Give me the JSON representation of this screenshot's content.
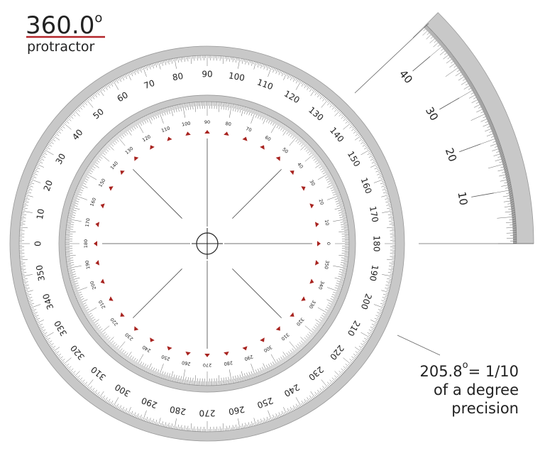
{
  "header": {
    "value": "360.0",
    "degree_sign": "o",
    "subtitle": "protractor"
  },
  "outer_scale": {
    "labels": [
      0,
      10,
      20,
      30,
      40,
      50,
      60,
      70,
      80,
      90,
      100,
      110,
      120,
      130,
      140,
      150,
      160,
      170,
      180,
      190,
      200,
      210,
      220,
      230,
      240,
      250,
      260,
      270,
      280,
      290,
      300,
      310,
      320,
      330,
      340,
      350
    ]
  },
  "inner_scale": {
    "labels": [
      0,
      10,
      20,
      30,
      40,
      50,
      60,
      70,
      80,
      90,
      100,
      110,
      120,
      130,
      140,
      150,
      160,
      170,
      180,
      190,
      200,
      210,
      220,
      230,
      240,
      250,
      260,
      270,
      280,
      290,
      300,
      310,
      320,
      330,
      340,
      350
    ]
  },
  "zoom_scale": {
    "labels": [
      10,
      20,
      30,
      40
    ]
  },
  "note": {
    "value": "205.8",
    "degree_sign": "o",
    "lines": [
      "= 1/10",
      "of a degree",
      "precision"
    ]
  }
}
